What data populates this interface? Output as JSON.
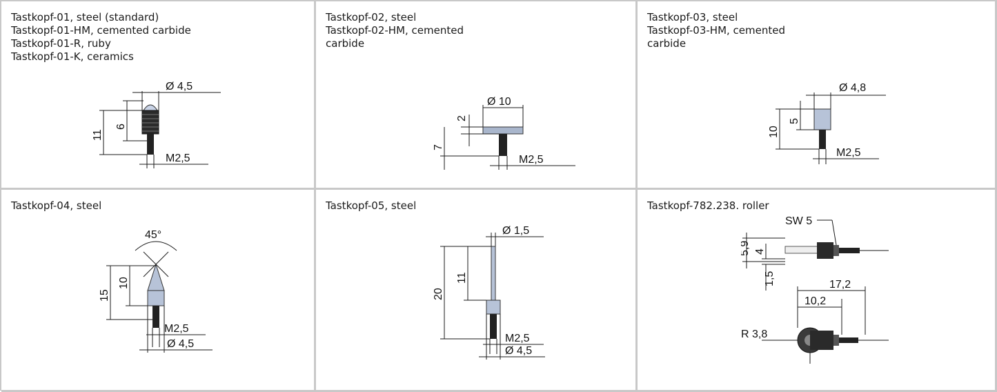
{
  "cells": [
    {
      "lines": [
        "Tastkopf-01, steel (standard)",
        "Tastkopf-01-HM, cemented carbide",
        "Tastkopf-01-R, ruby",
        "Tastkopf-01-K, ceramics"
      ],
      "dims": {
        "dia": "Ø 4,5",
        "total": "11",
        "head": "6",
        "thread": "M2,5"
      }
    },
    {
      "lines": [
        "Tastkopf-02, steel",
        "Tastkopf-02-HM, cemented carbide"
      ],
      "dims": {
        "dia": "Ø 10",
        "head": "2",
        "total": "7",
        "thread": "M2,5"
      }
    },
    {
      "lines": [
        "Tastkopf-03, steel",
        "Tastkopf-03-HM, cemented carbide"
      ],
      "dims": {
        "dia": "Ø 4,8",
        "total": "10",
        "head": "5",
        "thread": "M2,5"
      }
    },
    {
      "lines": [
        "Tastkopf-04, steel"
      ],
      "dims": {
        "angle": "45°",
        "total": "15",
        "head": "10",
        "thread": "M2,5",
        "dia": "Ø 4,5"
      }
    },
    {
      "lines": [
        "Tastkopf-05, steel"
      ],
      "dims": {
        "pin_dia": "Ø 1,5",
        "total": "20",
        "pin": "11",
        "thread": "M2,5",
        "dia": "Ø 4,5"
      }
    },
    {
      "lines": [
        "Tastkopf-782.238. roller"
      ],
      "dims": {
        "sw": "SW 5",
        "a": "5,9",
        "b": "4",
        "c": "1,5",
        "l1": "17,2",
        "l2": "10,2",
        "r": "R 3,8"
      }
    }
  ]
}
